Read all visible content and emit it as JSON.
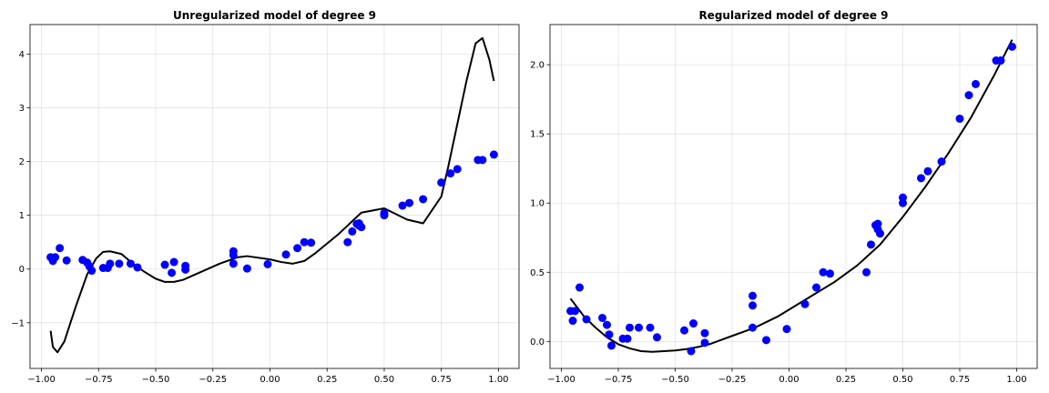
{
  "chart_data": [
    {
      "type": "scatter",
      "title": "Unregularized model of degree 9",
      "xlabel": "",
      "ylabel": "",
      "xlim": [
        -1.05,
        1.09
      ],
      "ylim": [
        -1.85,
        4.55
      ],
      "xticks": [
        -1.0,
        -0.75,
        -0.5,
        -0.25,
        0.0,
        0.25,
        0.5,
        0.75,
        1.0
      ],
      "xtick_labels": [
        "−1.00",
        "−0.75",
        "−0.50",
        "−0.25",
        "0.00",
        "0.25",
        "0.50",
        "0.75",
        "1.00"
      ],
      "yticks": [
        -1,
        0,
        1,
        2,
        3,
        4
      ],
      "ytick_labels": [
        "−1",
        "0",
        "1",
        "2",
        "3",
        "4"
      ],
      "grid": true,
      "point_color": "#0000ff",
      "line_color": "#000000",
      "points": {
        "x": [
          -0.96,
          -0.95,
          -0.94,
          -0.92,
          -0.89,
          -0.82,
          -0.8,
          -0.79,
          -0.78,
          -0.73,
          -0.71,
          -0.7,
          -0.66,
          -0.61,
          -0.58,
          -0.46,
          -0.43,
          -0.42,
          -0.37,
          -0.37,
          -0.16,
          -0.16,
          -0.16,
          -0.1,
          -0.01,
          0.07,
          0.12,
          0.15,
          0.18,
          0.34,
          0.36,
          0.38,
          0.39,
          0.39,
          0.4,
          0.5,
          0.5,
          0.58,
          0.61,
          0.67,
          0.75,
          0.79,
          0.82,
          0.91,
          0.93,
          0.98
        ],
        "y": [
          0.22,
          0.15,
          0.22,
          0.39,
          0.16,
          0.17,
          0.12,
          0.05,
          -0.03,
          0.02,
          0.02,
          0.1,
          0.1,
          0.1,
          0.03,
          0.08,
          -0.07,
          0.13,
          0.06,
          -0.01,
          0.1,
          0.26,
          0.33,
          0.01,
          0.09,
          0.27,
          0.39,
          0.5,
          0.49,
          0.5,
          0.7,
          0.84,
          0.81,
          0.85,
          0.78,
          1.0,
          1.04,
          1.18,
          1.23,
          1.3,
          1.61,
          1.78,
          1.86,
          2.03,
          2.03,
          2.13
        ]
      },
      "fit": {
        "x": [
          -0.96,
          -0.95,
          -0.93,
          -0.9,
          -0.85,
          -0.8,
          -0.76,
          -0.73,
          -0.7,
          -0.65,
          -0.6,
          -0.55,
          -0.5,
          -0.46,
          -0.42,
          -0.38,
          -0.3,
          -0.22,
          -0.14,
          -0.1,
          0.0,
          0.05,
          0.1,
          0.15,
          0.2,
          0.3,
          0.4,
          0.5,
          0.6,
          0.67,
          0.75,
          0.78,
          0.82,
          0.86,
          0.9,
          0.93,
          0.96,
          0.98
        ],
        "y": [
          -1.15,
          -1.45,
          -1.55,
          -1.35,
          -0.7,
          -0.1,
          0.2,
          0.32,
          0.33,
          0.28,
          0.1,
          -0.05,
          -0.18,
          -0.24,
          -0.24,
          -0.2,
          -0.05,
          0.1,
          0.22,
          0.24,
          0.18,
          0.13,
          0.1,
          0.15,
          0.3,
          0.65,
          1.05,
          1.13,
          0.92,
          0.85,
          1.35,
          1.9,
          2.7,
          3.5,
          4.2,
          4.3,
          3.9,
          3.5
        ]
      }
    },
    {
      "type": "scatter",
      "title": "Regularized model of degree 9",
      "xlabel": "",
      "ylabel": "",
      "xlim": [
        -1.05,
        1.09
      ],
      "ylim": [
        -0.195,
        2.29
      ],
      "xticks": [
        -1.0,
        -0.75,
        -0.5,
        -0.25,
        0.0,
        0.25,
        0.5,
        0.75,
        1.0
      ],
      "xtick_labels": [
        "−1.00",
        "−0.75",
        "−0.50",
        "−0.25",
        "0.00",
        "0.25",
        "0.50",
        "0.75",
        "1.00"
      ],
      "yticks": [
        0.0,
        0.5,
        1.0,
        1.5,
        2.0
      ],
      "ytick_labels": [
        "0.0",
        "0.5",
        "1.0",
        "1.5",
        "2.0"
      ],
      "grid": true,
      "point_color": "#0000ff",
      "line_color": "#000000",
      "points": {
        "x": [
          -0.96,
          -0.95,
          -0.94,
          -0.92,
          -0.89,
          -0.82,
          -0.8,
          -0.79,
          -0.78,
          -0.73,
          -0.71,
          -0.7,
          -0.66,
          -0.61,
          -0.58,
          -0.46,
          -0.43,
          -0.42,
          -0.37,
          -0.37,
          -0.16,
          -0.16,
          -0.16,
          -0.1,
          -0.01,
          0.07,
          0.12,
          0.15,
          0.18,
          0.34,
          0.36,
          0.38,
          0.39,
          0.39,
          0.4,
          0.5,
          0.5,
          0.58,
          0.61,
          0.67,
          0.75,
          0.79,
          0.82,
          0.91,
          0.93,
          0.98
        ],
        "y": [
          0.22,
          0.15,
          0.22,
          0.39,
          0.16,
          0.17,
          0.12,
          0.05,
          -0.03,
          0.02,
          0.02,
          0.1,
          0.1,
          0.1,
          0.03,
          0.08,
          -0.07,
          0.13,
          0.06,
          -0.01,
          0.1,
          0.26,
          0.33,
          0.01,
          0.09,
          0.27,
          0.39,
          0.5,
          0.49,
          0.5,
          0.7,
          0.84,
          0.81,
          0.85,
          0.78,
          1.0,
          1.04,
          1.18,
          1.23,
          1.3,
          1.61,
          1.78,
          1.86,
          2.03,
          2.03,
          2.13
        ]
      },
      "fit": {
        "x": [
          -0.96,
          -0.9,
          -0.85,
          -0.8,
          -0.75,
          -0.7,
          -0.65,
          -0.6,
          -0.55,
          -0.5,
          -0.45,
          -0.4,
          -0.35,
          -0.3,
          -0.25,
          -0.2,
          -0.15,
          -0.1,
          -0.05,
          0.0,
          0.05,
          0.1,
          0.2,
          0.3,
          0.4,
          0.5,
          0.6,
          0.7,
          0.8,
          0.9,
          0.98
        ],
        "y": [
          0.31,
          0.18,
          0.1,
          0.03,
          -0.02,
          -0.05,
          -0.07,
          -0.075,
          -0.07,
          -0.065,
          -0.055,
          -0.04,
          -0.02,
          0.01,
          0.04,
          0.07,
          0.1,
          0.14,
          0.18,
          0.23,
          0.28,
          0.33,
          0.43,
          0.55,
          0.7,
          0.9,
          1.12,
          1.36,
          1.62,
          1.92,
          2.18
        ]
      }
    }
  ]
}
